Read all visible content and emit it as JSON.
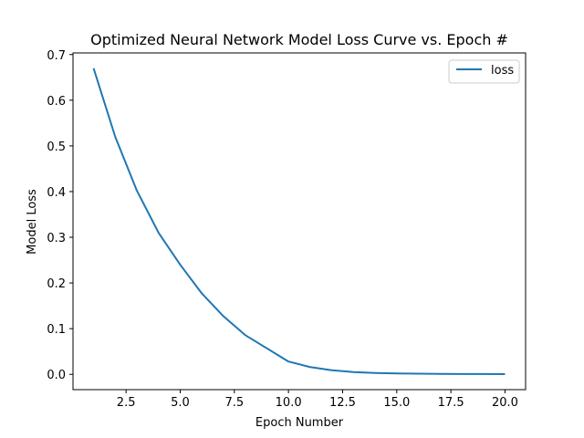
{
  "chart_data": {
    "type": "line",
    "title": "Optimized Neural Network Model Loss Curve vs. Epoch #",
    "xlabel": "Epoch Number",
    "ylabel": "Model Loss",
    "xlim": [
      0.05,
      20.95
    ],
    "ylim": [
      -0.0335,
      0.7035
    ],
    "xticks": [
      2.5,
      5.0,
      7.5,
      10.0,
      12.5,
      15.0,
      17.5,
      20.0
    ],
    "xtick_labels": [
      "2.5",
      "5.0",
      "7.5",
      "10.0",
      "12.5",
      "15.0",
      "17.5",
      "20.0"
    ],
    "yticks": [
      0.0,
      0.1,
      0.2,
      0.3,
      0.4,
      0.5,
      0.6,
      0.7
    ],
    "ytick_labels": [
      "0.0",
      "0.1",
      "0.2",
      "0.3",
      "0.4",
      "0.5",
      "0.6",
      "0.7"
    ],
    "grid": false,
    "legend_position": "top-right",
    "x": [
      1,
      2,
      3,
      4,
      5,
      6,
      7,
      8,
      9,
      10,
      11,
      12,
      13,
      14,
      15,
      16,
      17,
      18,
      19,
      20
    ],
    "series": [
      {
        "name": "loss",
        "color": "#1f77b4",
        "values": [
          0.67,
          0.52,
          0.402,
          0.31,
          0.24,
          0.177,
          0.127,
          0.086,
          0.057,
          0.028,
          0.016,
          0.009,
          0.005,
          0.003,
          0.002,
          0.0015,
          0.001,
          0.0008,
          0.0006,
          0.0005
        ]
      }
    ]
  }
}
